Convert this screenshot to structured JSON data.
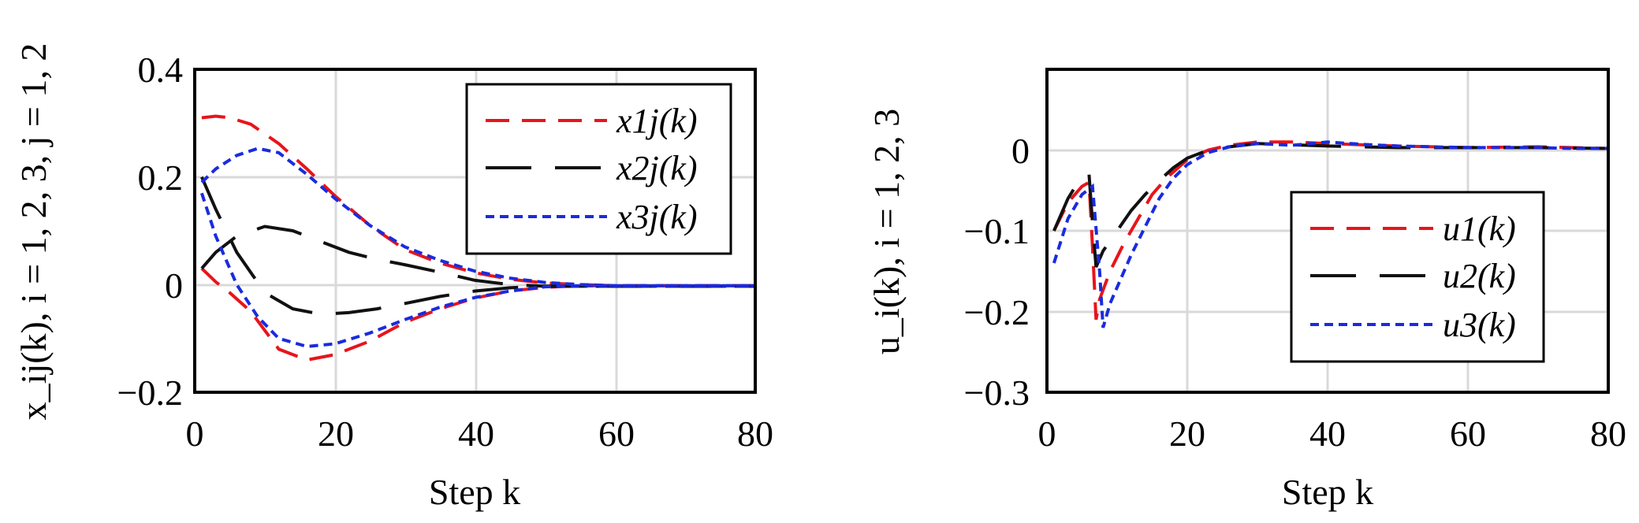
{
  "chart_data": [
    {
      "type": "line",
      "xlabel": "Step k",
      "ylabel": "x_ij(k), i = 1, 2, 3, j = 1, 2",
      "xlim": [
        0,
        80
      ],
      "ylim": [
        -0.2,
        0.4
      ],
      "xticks": [
        "0",
        "20",
        "40",
        "60",
        "80"
      ],
      "yticks": [
        "0.4",
        "0.2",
        "0",
        "−0.2"
      ],
      "grid": true,
      "legend_position": "top-right",
      "series": [
        {
          "name": "x1j(k)",
          "color": "#e8141b",
          "dash": "long-dash",
          "x": [
            1,
            3,
            5,
            8,
            12,
            16,
            20,
            25,
            30,
            35,
            40,
            45,
            50,
            55,
            60,
            70,
            80
          ],
          "y": [
            0.31,
            0.313,
            0.31,
            0.298,
            0.262,
            0.215,
            0.165,
            0.11,
            0.065,
            0.04,
            0.022,
            0.01,
            0.003,
            0.0,
            -0.002,
            -0.002,
            -0.002
          ]
        },
        {
          "name": "x1j(k)",
          "color": "#e8141b",
          "dash": "long-dash",
          "x": [
            1,
            3,
            5,
            8,
            12,
            16,
            20,
            25,
            30,
            35,
            40,
            45,
            50,
            55,
            60,
            70,
            80
          ],
          "y": [
            0.03,
            0.005,
            -0.015,
            -0.05,
            -0.12,
            -0.14,
            -0.13,
            -0.105,
            -0.07,
            -0.045,
            -0.025,
            -0.012,
            -0.005,
            -0.002,
            -0.002,
            -0.002,
            -0.002
          ]
        },
        {
          "name": "x2j(k)",
          "color": "#111111",
          "dash": "black-long",
          "x": [
            1,
            3,
            6,
            10,
            14,
            18,
            22,
            26,
            30,
            35,
            40,
            45,
            50,
            60,
            80
          ],
          "y": [
            0.03,
            0.06,
            0.09,
            0.108,
            0.1,
            0.08,
            0.06,
            0.047,
            0.037,
            0.023,
            0.008,
            0.0,
            -0.003,
            -0.003,
            -0.003
          ]
        },
        {
          "name": "x2j(k)",
          "color": "#111111",
          "dash": "black-long",
          "x": [
            1,
            3,
            6,
            10,
            14,
            18,
            22,
            26,
            30,
            35,
            40,
            45,
            50,
            60,
            80
          ],
          "y": [
            0.2,
            0.14,
            0.06,
            -0.015,
            -0.045,
            -0.055,
            -0.052,
            -0.045,
            -0.035,
            -0.022,
            -0.012,
            -0.006,
            -0.003,
            -0.003,
            -0.003
          ]
        },
        {
          "name": "x3j(k)",
          "color": "#1a2bde",
          "dash": "short-dash",
          "x": [
            1,
            3,
            6,
            9,
            12,
            16,
            20,
            25,
            30,
            35,
            40,
            45,
            50,
            55,
            60,
            80
          ],
          "y": [
            0.19,
            0.215,
            0.24,
            0.253,
            0.245,
            0.205,
            0.16,
            0.11,
            0.07,
            0.045,
            0.025,
            0.012,
            0.004,
            0.0,
            -0.002,
            -0.002
          ]
        },
        {
          "name": "x3j(k)",
          "color": "#1a2bde",
          "dash": "short-dash",
          "x": [
            1,
            3,
            6,
            9,
            12,
            16,
            20,
            25,
            30,
            35,
            40,
            45,
            50,
            55,
            60,
            80
          ],
          "y": [
            0.17,
            0.09,
            0.0,
            -0.06,
            -0.1,
            -0.115,
            -0.11,
            -0.09,
            -0.065,
            -0.042,
            -0.024,
            -0.012,
            -0.004,
            -0.002,
            -0.002,
            -0.002
          ]
        }
      ],
      "legend": [
        "x1j(k)",
        "x2j(k)",
        "x3j(k)"
      ]
    },
    {
      "type": "line",
      "xlabel": "Step k",
      "ylabel": "u_i(k), i = 1, 2, 3",
      "xlim": [
        0,
        80
      ],
      "ylim": [
        -0.3,
        0.1
      ],
      "xticks": [
        "0",
        "20",
        "40",
        "60",
        "80"
      ],
      "yticks": [
        "0",
        "−0.1",
        "−0.2",
        "−0.3"
      ],
      "grid": true,
      "legend_position": "bottom-right",
      "series": [
        {
          "name": "u1(k)",
          "color": "#e8141b",
          "dash": "long-dash",
          "x": [
            1,
            3,
            5,
            6,
            6.5,
            7,
            7.5,
            9,
            11,
            13,
            15,
            17,
            20,
            23,
            26,
            30,
            35,
            40,
            50,
            60,
            70,
            80
          ],
          "y": [
            -0.1,
            -0.065,
            -0.045,
            -0.04,
            -0.12,
            -0.21,
            -0.185,
            -0.15,
            -0.115,
            -0.085,
            -0.055,
            -0.035,
            -0.012,
            0.0,
            0.006,
            0.01,
            0.01,
            0.008,
            0.005,
            0.003,
            0.004,
            0.002
          ]
        },
        {
          "name": "u2(k)",
          "color": "#111111",
          "dash": "black-long",
          "x": [
            1,
            3,
            5,
            6,
            6.5,
            7,
            8,
            10,
            12,
            14,
            16,
            18,
            20,
            23,
            26,
            30,
            40,
            50,
            60,
            70,
            80
          ],
          "y": [
            -0.1,
            -0.06,
            -0.032,
            -0.03,
            -0.09,
            -0.145,
            -0.125,
            -0.1,
            -0.075,
            -0.055,
            -0.038,
            -0.022,
            -0.01,
            0.0,
            0.004,
            0.008,
            0.005,
            0.003,
            0.003,
            0.003,
            0.002
          ]
        },
        {
          "name": "u3(k)",
          "color": "#1a2bde",
          "dash": "short-dash",
          "x": [
            1,
            3,
            5,
            6.5,
            7.5,
            8,
            9,
            10,
            12,
            14,
            16,
            18,
            20,
            23,
            26,
            30,
            35,
            40,
            45,
            50,
            55,
            60,
            65,
            70,
            75,
            80
          ],
          "y": [
            -0.14,
            -0.085,
            -0.055,
            -0.045,
            -0.15,
            -0.22,
            -0.19,
            -0.17,
            -0.13,
            -0.095,
            -0.06,
            -0.035,
            -0.018,
            -0.003,
            0.004,
            0.008,
            0.006,
            0.01,
            0.007,
            0.005,
            0.004,
            0.003,
            0.003,
            0.003,
            0.002,
            0.002
          ]
        }
      ],
      "legend": [
        "u1(k)",
        "u2(k)",
        "u3(k)"
      ]
    }
  ]
}
